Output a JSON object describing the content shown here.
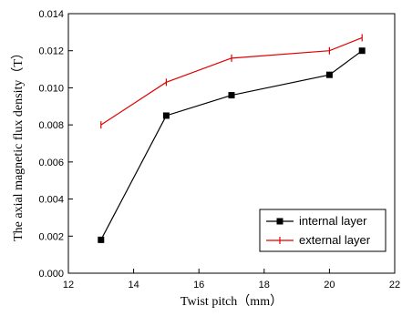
{
  "chart_data": {
    "type": "line",
    "xlabel": "Twist pitch（mm）",
    "ylabel": "The axial magnetic flux density（T）",
    "xlim": [
      12,
      22
    ],
    "ylim": [
      0.0,
      0.014
    ],
    "x_ticks": [
      "12",
      "14",
      "16",
      "18",
      "20",
      "22"
    ],
    "y_ticks": [
      "0.000",
      "0.002",
      "0.004",
      "0.006",
      "0.008",
      "0.010",
      "0.012",
      "0.014"
    ],
    "grid": false,
    "legend_position": "bottom-right",
    "series": [
      {
        "name": "internal layer",
        "color": "#000000",
        "marker": "square",
        "x": [
          13,
          15,
          17,
          20,
          21
        ],
        "y": [
          0.0018,
          0.0085,
          0.0096,
          0.0107,
          0.012
        ]
      },
      {
        "name": "external layer",
        "color": "#e00000",
        "marker": "plus",
        "x": [
          13,
          15,
          17,
          20,
          21
        ],
        "y": [
          0.008,
          0.0103,
          0.0116,
          0.012,
          0.0127
        ]
      }
    ]
  }
}
